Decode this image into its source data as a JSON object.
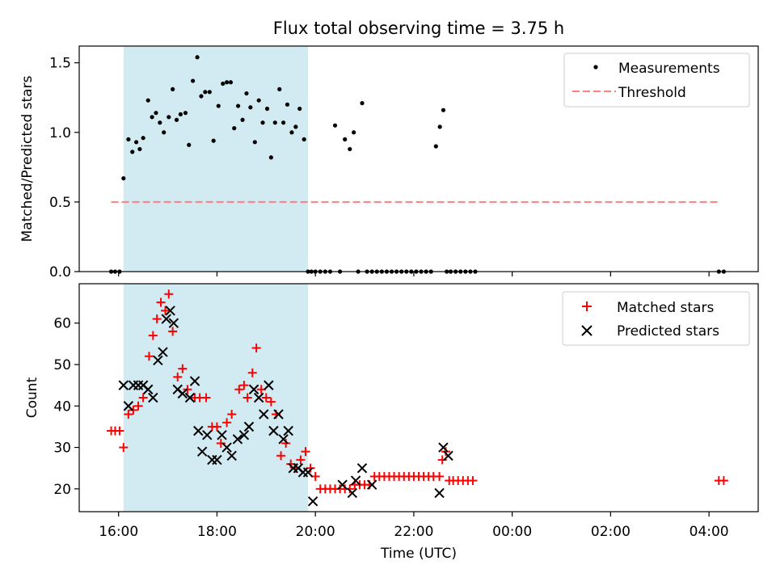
{
  "chart_data": [
    {
      "type": "scatter",
      "title": "Flux total observing time = 3.75 h",
      "ylabel": "Matched/Predicted stars",
      "ylim": [
        0,
        1.62
      ],
      "yticks": [
        0.0,
        0.5,
        1.0,
        1.5
      ],
      "ytick_labels": [
        "0.0",
        "0.5",
        "1.0",
        "1.5"
      ],
      "xlim": [
        15.2,
        29.0
      ],
      "grid": false,
      "legend_position": "top-right",
      "shaded_region": {
        "x_start": 16.1,
        "x_end": 19.85,
        "color": "#add8e6"
      },
      "threshold": {
        "name": "Threshold",
        "y": 0.5,
        "x_start": 15.85,
        "x_end": 28.2,
        "color": "#ff7f7f"
      },
      "series": [
        {
          "name": "Measurements",
          "color": "#000000",
          "x": [
            15.85,
            15.93,
            16.02,
            16.1,
            16.2,
            16.28,
            16.36,
            16.43,
            16.5,
            16.6,
            16.68,
            16.76,
            16.84,
            16.92,
            17.02,
            17.1,
            17.18,
            17.26,
            17.36,
            17.43,
            17.51,
            17.6,
            17.68,
            17.76,
            17.85,
            17.93,
            18.03,
            18.12,
            18.2,
            18.28,
            18.35,
            18.43,
            18.52,
            18.6,
            18.68,
            18.77,
            18.85,
            18.93,
            19.02,
            19.1,
            19.18,
            19.27,
            19.35,
            19.43,
            19.52,
            19.6,
            19.68,
            19.77,
            19.85,
            19.92,
            20.0,
            20.1,
            20.2,
            20.3,
            20.4,
            20.5,
            20.6,
            20.7,
            20.78,
            20.87,
            20.95,
            21.05,
            21.15,
            21.25,
            21.35,
            21.45,
            21.55,
            21.65,
            21.75,
            21.85,
            21.95,
            22.05,
            22.15,
            22.25,
            22.35,
            22.45,
            22.53,
            22.6,
            22.67,
            22.75,
            22.85,
            22.95,
            23.05,
            23.15,
            23.25,
            28.2,
            28.3
          ],
          "y": [
            0.0,
            0.0,
            0.0,
            0.67,
            0.95,
            0.86,
            0.93,
            0.88,
            0.96,
            1.23,
            1.11,
            1.14,
            1.07,
            1.0,
            1.11,
            1.31,
            1.09,
            1.13,
            1.14,
            0.91,
            1.37,
            1.54,
            1.26,
            1.29,
            1.29,
            0.94,
            1.19,
            1.35,
            1.36,
            1.36,
            1.03,
            1.19,
            1.09,
            1.28,
            1.18,
            0.93,
            1.23,
            1.07,
            1.17,
            0.82,
            1.07,
            1.31,
            1.07,
            1.2,
            1.0,
            1.04,
            1.17,
            0.95,
            0.0,
            0.0,
            0.0,
            0.0,
            0.0,
            0.0,
            1.05,
            0.0,
            0.95,
            0.88,
            1.0,
            0.0,
            1.21,
            0.0,
            0.0,
            0.0,
            0.0,
            0.0,
            0.0,
            0.0,
            0.0,
            0.0,
            0.0,
            0.0,
            0.0,
            0.0,
            0.0,
            0.9,
            1.04,
            1.16,
            0.0,
            0.0,
            0.0,
            0.0,
            0.0,
            0.0,
            0.0,
            0.0,
            0.0
          ]
        }
      ],
      "legend": [
        "Measurements",
        "Threshold"
      ]
    },
    {
      "type": "scatter",
      "ylabel": "Count",
      "xlabel": "Time (UTC)",
      "ylim": [
        14.5,
        69.5
      ],
      "yticks": [
        20,
        30,
        40,
        50,
        60
      ],
      "ytick_labels": [
        "20",
        "30",
        "40",
        "50",
        "60"
      ],
      "xlim": [
        15.2,
        29.0
      ],
      "xticks": [
        16,
        18,
        20,
        22,
        24,
        26,
        28
      ],
      "xtick_labels": [
        "16:00",
        "18:00",
        "20:00",
        "22:00",
        "00:00",
        "02:00",
        "04:00"
      ],
      "grid": false,
      "legend_position": "top-right",
      "shaded_region": {
        "x_start": 16.1,
        "x_end": 19.85,
        "color": "#add8e6"
      },
      "series": [
        {
          "name": "Matched stars",
          "marker": "plus",
          "color": "#ff0000",
          "x": [
            15.85,
            15.93,
            16.02,
            16.1,
            16.2,
            16.3,
            16.4,
            16.5,
            16.62,
            16.7,
            16.78,
            16.86,
            16.95,
            17.02,
            17.1,
            17.2,
            17.3,
            17.4,
            17.55,
            17.65,
            17.78,
            17.9,
            18.0,
            18.08,
            18.2,
            18.3,
            18.45,
            18.55,
            18.62,
            18.72,
            18.8,
            18.9,
            19.0,
            19.1,
            19.2,
            19.3,
            19.4,
            19.5,
            19.6,
            19.7,
            19.8,
            19.9,
            20.0,
            20.1,
            20.2,
            20.3,
            20.4,
            20.5,
            20.6,
            20.7,
            20.8,
            20.9,
            21.0,
            21.1,
            21.2,
            21.3,
            21.4,
            21.5,
            21.6,
            21.7,
            21.8,
            21.9,
            22.0,
            22.1,
            22.2,
            22.3,
            22.4,
            22.52,
            22.58,
            22.65,
            22.72,
            22.8,
            22.9,
            23.0,
            23.1,
            23.2,
            28.2,
            28.3
          ],
          "y": [
            34,
            34,
            34,
            30,
            38,
            39,
            40,
            42,
            52,
            57,
            61,
            65,
            63,
            67,
            58,
            47,
            49,
            44,
            42,
            42,
            42,
            35,
            35,
            31,
            36,
            38,
            44,
            45,
            42,
            48,
            54,
            44,
            42,
            41,
            38,
            28,
            31,
            26,
            25,
            27,
            29,
            25,
            23,
            20,
            20,
            20,
            20,
            20,
            20,
            20,
            21,
            21,
            21,
            21,
            23,
            23,
            23,
            23,
            23,
            23,
            23,
            23,
            23,
            23,
            23,
            23,
            23,
            23,
            27,
            29,
            22,
            22,
            22,
            22,
            22,
            22,
            22,
            22
          ]
        },
        {
          "name": "Predicted stars",
          "marker": "x",
          "color": "#000000",
          "x": [
            16.1,
            16.2,
            16.3,
            16.4,
            16.5,
            16.6,
            16.7,
            16.8,
            16.9,
            16.97,
            17.05,
            17.12,
            17.2,
            17.3,
            17.45,
            17.55,
            17.62,
            17.7,
            17.8,
            17.9,
            18.0,
            18.1,
            18.2,
            18.3,
            18.42,
            18.55,
            18.65,
            18.75,
            18.85,
            18.95,
            19.05,
            19.15,
            19.25,
            19.35,
            19.45,
            19.55,
            19.65,
            19.75,
            19.85,
            19.95,
            20.55,
            20.75,
            20.82,
            20.95,
            21.15,
            22.52,
            22.6,
            22.7
          ],
          "y": [
            45,
            40,
            45,
            45,
            45,
            44,
            42,
            51,
            53,
            61,
            63,
            60,
            44,
            43,
            42,
            46,
            34,
            29,
            33,
            27,
            27,
            33,
            30,
            28,
            32,
            33,
            35,
            44,
            42,
            38,
            45,
            34,
            38,
            32,
            34,
            25,
            25,
            24,
            24,
            17,
            21,
            19,
            22,
            25,
            21,
            19,
            30,
            28
          ]
        }
      ],
      "legend": [
        "Matched stars",
        "Predicted stars"
      ]
    }
  ]
}
